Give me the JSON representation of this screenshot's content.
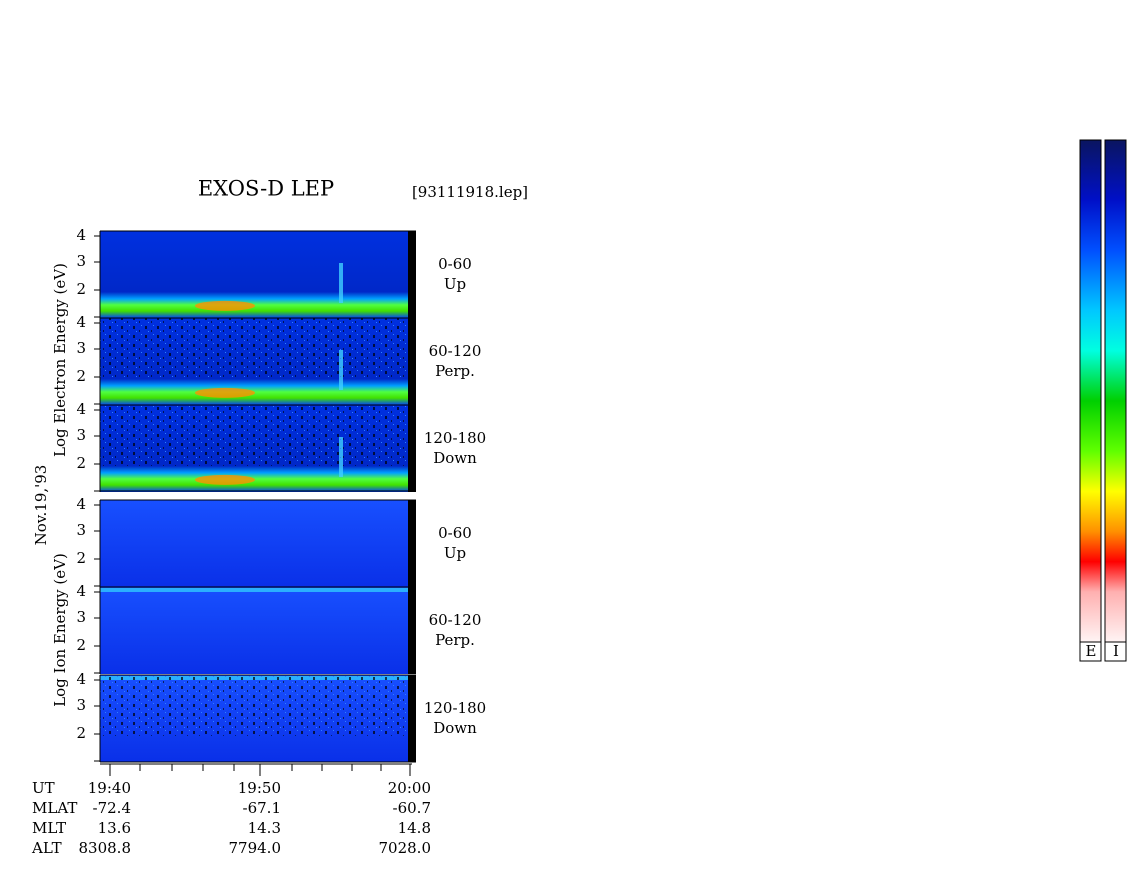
{
  "title": "EXOS-D LEP",
  "file": "[93111918.lep]",
  "date": "Nov.19,'93",
  "electron_axis": "Log Electron Energy (eV)",
  "ion_axis": "Log Ion Energy (eV)",
  "panels": [
    {
      "ticks": [
        "4",
        "3",
        "2"
      ],
      "angle": "0-60",
      "direction": "Up"
    },
    {
      "ticks": [
        "4",
        "3",
        "2"
      ],
      "angle": "60-120",
      "direction": "Perp."
    },
    {
      "ticks": [
        "4",
        "3",
        "2"
      ],
      "angle": "120-180",
      "direction": "Down"
    },
    {
      "ticks": [
        "4",
        "3",
        "2"
      ],
      "angle": "0-60",
      "direction": "Up"
    },
    {
      "ticks": [
        "4",
        "3",
        "2"
      ],
      "angle": "60-120",
      "direction": "Perp."
    },
    {
      "ticks": [
        "4",
        "3",
        "2"
      ],
      "angle": "120-180",
      "direction": "Down"
    }
  ],
  "orbit": [
    [
      "UT",
      "19:40",
      "19:50",
      "20:00"
    ],
    [
      "MLAT",
      "-72.4",
      "-67.1",
      "-60.7"
    ],
    [
      "MLT",
      "13.6",
      "14.3",
      "14.8"
    ],
    [
      "ALT",
      "8308.8",
      "7794.0",
      "7028.0"
    ]
  ],
  "colorbar_labels": [
    "E",
    "I"
  ]
}
